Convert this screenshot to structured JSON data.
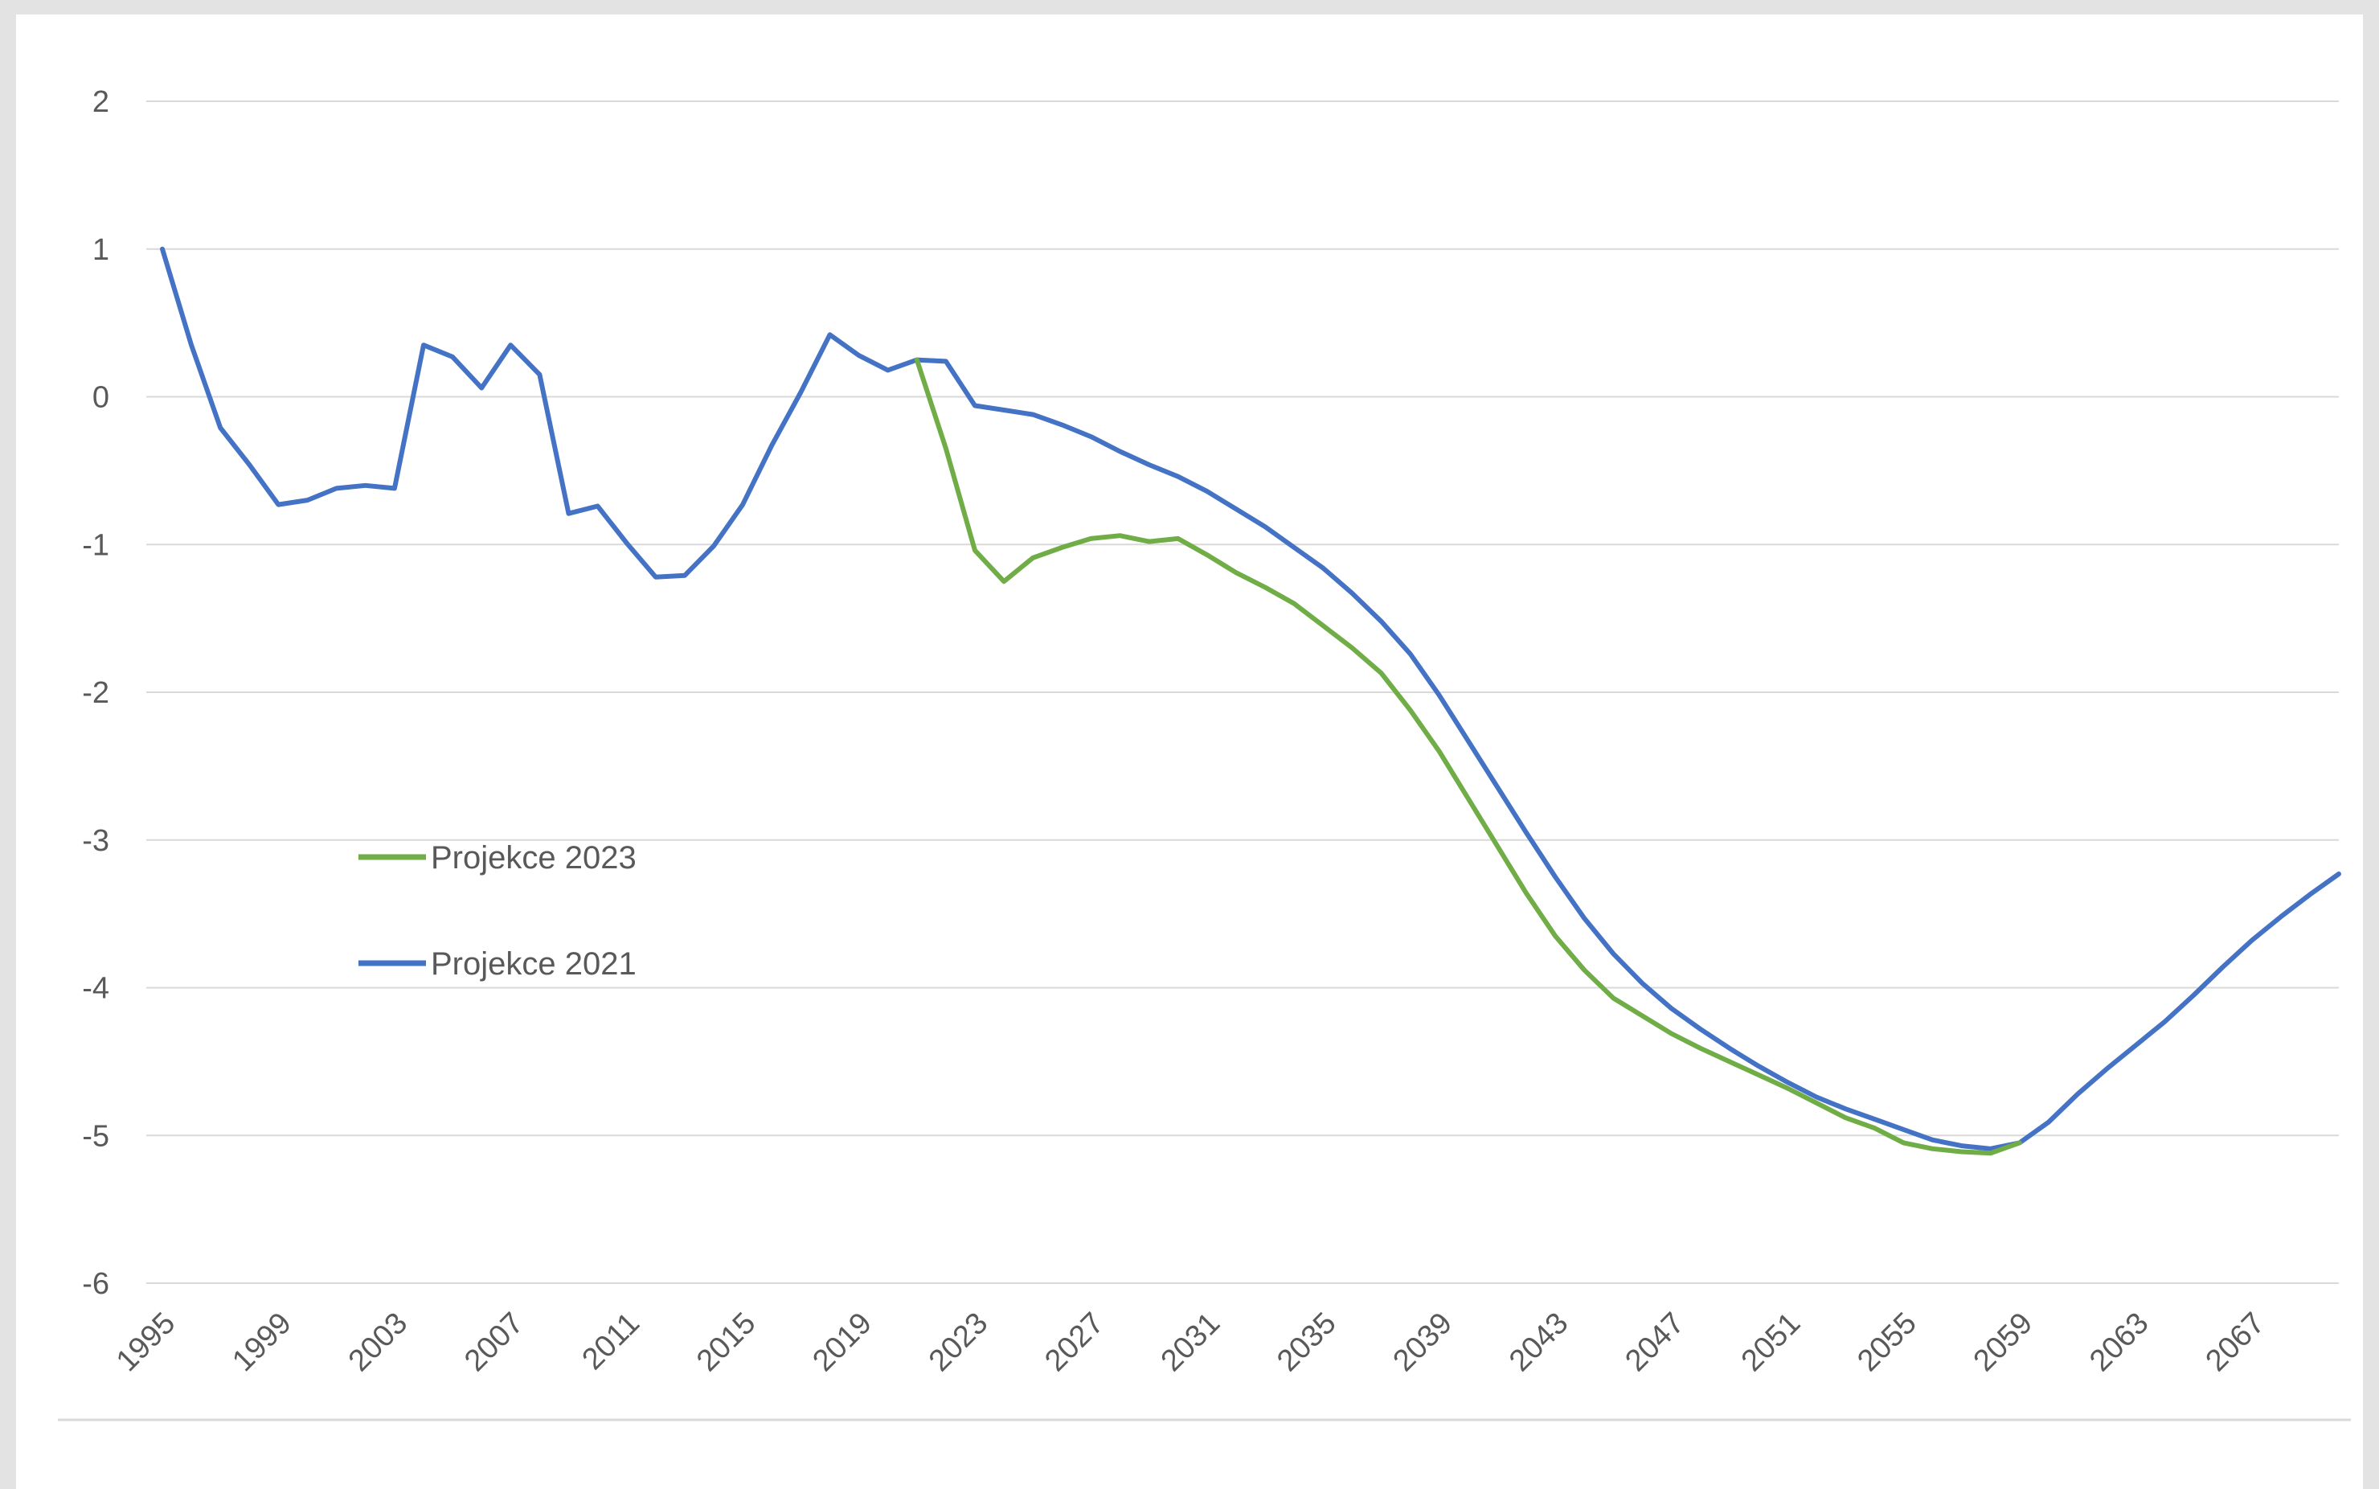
{
  "chart_data": {
    "type": "line",
    "title": "",
    "xlabel": "",
    "ylabel": "",
    "ylim": [
      -6,
      2
    ],
    "yticks": [
      2,
      1,
      0,
      -1,
      -2,
      -3,
      -4,
      -5,
      -6
    ],
    "xlim": [
      1995,
      2070
    ],
    "xticks": [
      1995,
      1999,
      2003,
      2007,
      2011,
      2015,
      2019,
      2023,
      2027,
      2031,
      2035,
      2039,
      2043,
      2047,
      2051,
      2055,
      2059,
      2063,
      2067
    ],
    "grid": true,
    "legend_position": "left-middle",
    "series": [
      {
        "name": "Projekce 2023",
        "color": "#70ad47",
        "x": [
          2021,
          2022,
          2023,
          2024,
          2025,
          2026,
          2027,
          2028,
          2029,
          2030,
          2031,
          2032,
          2033,
          2034,
          2035,
          2036,
          2037,
          2038,
          2039,
          2040,
          2041,
          2042,
          2043,
          2044,
          2045,
          2046,
          2047,
          2048,
          2049,
          2050,
          2051,
          2052,
          2053,
          2054,
          2055,
          2056,
          2057,
          2058,
          2059
        ],
        "values": [
          0.25,
          -0.35,
          -1.04,
          -1.25,
          -1.09,
          -1.02,
          -0.96,
          -0.94,
          -0.98,
          -0.96,
          -1.07,
          -1.19,
          -1.29,
          -1.4,
          -1.55,
          -1.7,
          -1.87,
          -2.12,
          -2.4,
          -2.72,
          -3.04,
          -3.36,
          -3.65,
          -3.88,
          -4.07,
          -4.19,
          -4.31,
          -4.41,
          -4.5,
          -4.59,
          -4.68,
          -4.78,
          -4.88,
          -4.95,
          -5.05,
          -5.09,
          -5.11,
          -5.12,
          -5.05
        ]
      },
      {
        "name": "Projekce 2021",
        "color": "#4472c4",
        "x": [
          1995,
          1996,
          1997,
          1998,
          1999,
          2000,
          2001,
          2002,
          2003,
          2004,
          2005,
          2006,
          2007,
          2008,
          2009,
          2010,
          2011,
          2012,
          2013,
          2014,
          2015,
          2016,
          2017,
          2018,
          2019,
          2020,
          2021,
          2022,
          2023,
          2024,
          2025,
          2026,
          2027,
          2028,
          2029,
          2030,
          2031,
          2032,
          2033,
          2034,
          2035,
          2036,
          2037,
          2038,
          2039,
          2040,
          2041,
          2042,
          2043,
          2044,
          2045,
          2046,
          2047,
          2048,
          2049,
          2050,
          2051,
          2052,
          2053,
          2054,
          2055,
          2056,
          2057,
          2058,
          2059,
          2060,
          2061,
          2062,
          2063,
          2064,
          2065,
          2066,
          2067,
          2068,
          2069,
          2070
        ],
        "values": [
          1.0,
          0.35,
          -0.21,
          -0.46,
          -0.73,
          -0.7,
          -0.62,
          -0.6,
          -0.62,
          0.35,
          0.27,
          0.06,
          0.35,
          0.15,
          -0.79,
          -0.74,
          -0.99,
          -1.22,
          -1.21,
          -1.01,
          -0.73,
          -0.33,
          0.03,
          0.42,
          0.28,
          0.18,
          0.25,
          0.24,
          -0.06,
          -0.09,
          -0.12,
          -0.19,
          -0.27,
          -0.37,
          -0.46,
          -0.54,
          -0.64,
          -0.76,
          -0.88,
          -1.02,
          -1.16,
          -1.33,
          -1.52,
          -1.74,
          -2.02,
          -2.33,
          -2.64,
          -2.95,
          -3.25,
          -3.53,
          -3.77,
          -3.97,
          -4.14,
          -4.28,
          -4.41,
          -4.53,
          -4.64,
          -4.74,
          -4.82,
          -4.89,
          -4.96,
          -5.03,
          -5.07,
          -5.09,
          -5.05,
          -4.91,
          -4.72,
          -4.55,
          -4.39,
          -4.23,
          -4.05,
          -3.86,
          -3.68,
          -3.52,
          -3.37,
          -3.23
        ]
      }
    ]
  }
}
